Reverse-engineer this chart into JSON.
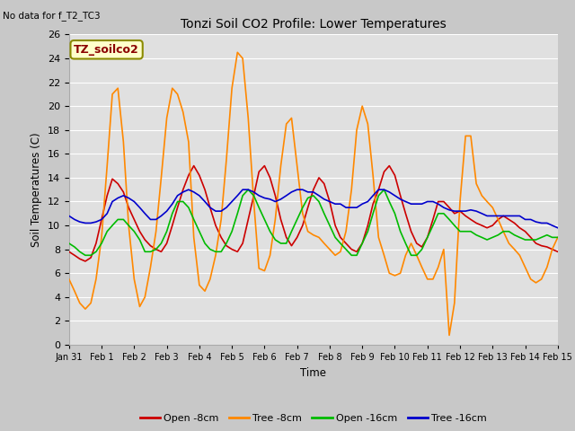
{
  "title": "Tonzi Soil CO2 Profile: Lower Temperatures",
  "subtitle": "No data for f_T2_TC3",
  "ylabel": "Soil Temperatures (C)",
  "xlabel": "Time",
  "legend_label": "TZ_soilco2",
  "ylim": [
    0,
    26
  ],
  "series_colors": {
    "open8": "#cc0000",
    "tree8": "#ff8800",
    "open16": "#00bb00",
    "tree16": "#0000cc"
  },
  "legend_items": [
    {
      "label": "Open -8cm",
      "color": "#cc0000"
    },
    {
      "label": "Tree -8cm",
      "color": "#ff8800"
    },
    {
      "label": "Open -16cm",
      "color": "#00bb00"
    },
    {
      "label": "Tree -16cm",
      "color": "#0000cc"
    }
  ],
  "xtick_labels": [
    "Jan 31",
    "Feb 1",
    "Feb 2",
    "Feb 3",
    "Feb 4",
    "Feb 5",
    "Feb 6",
    "Feb 7",
    "Feb 8",
    "Feb 9",
    "Feb 10",
    "Feb 11",
    "Feb 12",
    "Feb 13",
    "Feb 14",
    "Feb 15"
  ],
  "xtick_positions": [
    0,
    1,
    2,
    3,
    4,
    5,
    6,
    7,
    8,
    9,
    10,
    11,
    12,
    13,
    14,
    15
  ],
  "open8_x": [
    0.0,
    0.17,
    0.33,
    0.5,
    0.67,
    0.83,
    1.0,
    1.17,
    1.33,
    1.5,
    1.67,
    1.83,
    2.0,
    2.17,
    2.33,
    2.5,
    2.67,
    2.83,
    3.0,
    3.17,
    3.33,
    3.5,
    3.67,
    3.83,
    4.0,
    4.17,
    4.33,
    4.5,
    4.67,
    4.83,
    5.0,
    5.17,
    5.33,
    5.5,
    5.67,
    5.83,
    6.0,
    6.17,
    6.33,
    6.5,
    6.67,
    6.83,
    7.0,
    7.17,
    7.33,
    7.5,
    7.67,
    7.83,
    8.0,
    8.17,
    8.33,
    8.5,
    8.67,
    8.83,
    9.0,
    9.17,
    9.33,
    9.5,
    9.67,
    9.83,
    10.0,
    10.17,
    10.33,
    10.5,
    10.67,
    10.83,
    11.0,
    11.17,
    11.33,
    11.5,
    11.67,
    11.83,
    12.0,
    12.17,
    12.33,
    12.5,
    12.67,
    12.83,
    13.0,
    13.17,
    13.33,
    13.5,
    13.67,
    13.83,
    14.0,
    14.17,
    14.33,
    14.5,
    14.67,
    14.83,
    15.0
  ],
  "open8_y": [
    7.8,
    7.5,
    7.2,
    7.0,
    7.3,
    8.5,
    10.5,
    12.5,
    13.9,
    13.5,
    12.8,
    11.5,
    10.5,
    9.5,
    8.8,
    8.3,
    8.0,
    7.8,
    8.5,
    10.0,
    11.5,
    13.0,
    14.2,
    15.0,
    14.2,
    13.0,
    11.5,
    10.0,
    9.0,
    8.3,
    8.0,
    7.8,
    8.5,
    10.5,
    12.5,
    14.5,
    15.0,
    14.0,
    12.5,
    10.5,
    9.0,
    8.3,
    9.0,
    10.0,
    11.5,
    13.0,
    14.0,
    13.5,
    12.0,
    10.0,
    9.0,
    8.5,
    8.0,
    7.8,
    8.5,
    10.0,
    11.8,
    13.0,
    14.5,
    15.0,
    14.2,
    12.5,
    11.0,
    9.5,
    8.5,
    8.2,
    9.0,
    10.5,
    12.0,
    12.0,
    11.5,
    11.0,
    11.2,
    10.8,
    10.5,
    10.2,
    10.0,
    9.8,
    10.0,
    10.5,
    10.8,
    10.5,
    10.2,
    9.8,
    9.5,
    9.0,
    8.5,
    8.3,
    8.2,
    8.0,
    7.8
  ],
  "tree8_x": [
    0.0,
    0.17,
    0.33,
    0.5,
    0.67,
    0.83,
    1.0,
    1.17,
    1.33,
    1.5,
    1.67,
    1.83,
    2.0,
    2.17,
    2.33,
    2.5,
    2.67,
    2.83,
    3.0,
    3.17,
    3.33,
    3.5,
    3.67,
    3.83,
    4.0,
    4.17,
    4.33,
    4.5,
    4.67,
    4.83,
    5.0,
    5.17,
    5.33,
    5.5,
    5.67,
    5.83,
    6.0,
    6.17,
    6.33,
    6.5,
    6.67,
    6.83,
    7.0,
    7.17,
    7.33,
    7.5,
    7.67,
    7.83,
    8.0,
    8.17,
    8.33,
    8.5,
    8.67,
    8.83,
    9.0,
    9.17,
    9.33,
    9.5,
    9.67,
    9.83,
    10.0,
    10.17,
    10.33,
    10.5,
    10.67,
    10.83,
    11.0,
    11.17,
    11.33,
    11.5,
    11.67,
    11.83,
    12.0,
    12.17,
    12.33,
    12.5,
    12.67,
    12.83,
    13.0,
    13.17,
    13.33,
    13.5,
    13.67,
    13.83,
    14.0,
    14.17,
    14.33,
    14.5,
    14.67,
    14.83,
    15.0
  ],
  "tree8_y": [
    5.5,
    4.5,
    3.5,
    3.0,
    3.5,
    5.5,
    9.0,
    15.0,
    21.0,
    21.5,
    17.0,
    10.0,
    5.5,
    3.2,
    4.0,
    6.5,
    9.5,
    14.0,
    19.0,
    21.5,
    21.0,
    19.5,
    17.0,
    9.0,
    5.0,
    4.5,
    5.5,
    7.5,
    10.5,
    15.5,
    21.5,
    24.5,
    24.0,
    19.0,
    12.0,
    6.4,
    6.2,
    7.5,
    10.5,
    15.0,
    18.5,
    19.0,
    15.0,
    11.0,
    9.5,
    9.2,
    9.0,
    8.5,
    8.0,
    7.5,
    7.8,
    9.5,
    13.0,
    18.0,
    20.0,
    18.5,
    14.2,
    9.0,
    7.5,
    6.0,
    5.8,
    6.0,
    7.5,
    8.5,
    7.5,
    6.5,
    5.5,
    5.5,
    6.5,
    8.0,
    0.8,
    3.5,
    12.0,
    17.5,
    17.5,
    13.5,
    12.5,
    12.0,
    11.5,
    10.5,
    9.5,
    8.5,
    8.0,
    7.5,
    6.5,
    5.5,
    5.2,
    5.5,
    6.5,
    8.0,
    9.0
  ],
  "open16_x": [
    0.0,
    0.17,
    0.33,
    0.5,
    0.67,
    0.83,
    1.0,
    1.17,
    1.33,
    1.5,
    1.67,
    1.83,
    2.0,
    2.17,
    2.33,
    2.5,
    2.67,
    2.83,
    3.0,
    3.17,
    3.33,
    3.5,
    3.67,
    3.83,
    4.0,
    4.17,
    4.33,
    4.5,
    4.67,
    4.83,
    5.0,
    5.17,
    5.33,
    5.5,
    5.67,
    5.83,
    6.0,
    6.17,
    6.33,
    6.5,
    6.67,
    6.83,
    7.0,
    7.17,
    7.33,
    7.5,
    7.67,
    7.83,
    8.0,
    8.17,
    8.33,
    8.5,
    8.67,
    8.83,
    9.0,
    9.17,
    9.33,
    9.5,
    9.67,
    9.83,
    10.0,
    10.17,
    10.33,
    10.5,
    10.67,
    10.83,
    11.0,
    11.17,
    11.33,
    11.5,
    11.67,
    11.83,
    12.0,
    12.17,
    12.33,
    12.5,
    12.67,
    12.83,
    13.0,
    13.17,
    13.33,
    13.5,
    13.67,
    13.83,
    14.0,
    14.17,
    14.33,
    14.5,
    14.67,
    14.83,
    15.0
  ],
  "open16_y": [
    8.5,
    8.2,
    7.8,
    7.5,
    7.5,
    7.8,
    8.5,
    9.5,
    10.0,
    10.5,
    10.5,
    10.0,
    9.5,
    8.8,
    7.8,
    7.8,
    8.0,
    8.5,
    9.5,
    11.0,
    12.0,
    12.0,
    11.5,
    10.5,
    9.5,
    8.5,
    8.0,
    7.8,
    7.8,
    8.5,
    9.5,
    11.0,
    12.5,
    13.0,
    12.5,
    11.5,
    10.5,
    9.5,
    8.8,
    8.5,
    8.5,
    9.5,
    10.5,
    11.5,
    12.3,
    12.5,
    12.0,
    11.0,
    10.0,
    9.0,
    8.5,
    8.0,
    7.5,
    7.5,
    8.5,
    9.5,
    11.0,
    12.5,
    13.0,
    12.0,
    11.0,
    9.5,
    8.5,
    7.5,
    7.5,
    8.0,
    9.0,
    10.0,
    11.0,
    11.0,
    10.5,
    10.0,
    9.5,
    9.5,
    9.5,
    9.2,
    9.0,
    8.8,
    9.0,
    9.2,
    9.5,
    9.5,
    9.2,
    9.0,
    8.8,
    8.8,
    8.8,
    9.0,
    9.2,
    9.0,
    9.0
  ],
  "tree16_x": [
    0.0,
    0.17,
    0.33,
    0.5,
    0.67,
    0.83,
    1.0,
    1.17,
    1.33,
    1.5,
    1.67,
    1.83,
    2.0,
    2.17,
    2.33,
    2.5,
    2.67,
    2.83,
    3.0,
    3.17,
    3.33,
    3.5,
    3.67,
    3.83,
    4.0,
    4.17,
    4.33,
    4.5,
    4.67,
    4.83,
    5.0,
    5.17,
    5.33,
    5.5,
    5.67,
    5.83,
    6.0,
    6.17,
    6.33,
    6.5,
    6.67,
    6.83,
    7.0,
    7.17,
    7.33,
    7.5,
    7.67,
    7.83,
    8.0,
    8.17,
    8.33,
    8.5,
    8.67,
    8.83,
    9.0,
    9.17,
    9.33,
    9.5,
    9.67,
    9.83,
    10.0,
    10.17,
    10.33,
    10.5,
    10.67,
    10.83,
    11.0,
    11.17,
    11.33,
    11.5,
    11.67,
    11.83,
    12.0,
    12.17,
    12.33,
    12.5,
    12.67,
    12.83,
    13.0,
    13.17,
    13.33,
    13.5,
    13.67,
    13.83,
    14.0,
    14.17,
    14.33,
    14.5,
    14.67,
    14.83,
    15.0
  ],
  "tree16_y": [
    10.8,
    10.5,
    10.3,
    10.2,
    10.2,
    10.3,
    10.5,
    11.0,
    12.0,
    12.3,
    12.5,
    12.3,
    12.0,
    11.5,
    11.0,
    10.5,
    10.5,
    10.8,
    11.2,
    11.8,
    12.5,
    12.8,
    13.0,
    12.8,
    12.5,
    12.0,
    11.5,
    11.2,
    11.2,
    11.5,
    12.0,
    12.5,
    13.0,
    13.0,
    12.8,
    12.5,
    12.3,
    12.2,
    12.0,
    12.2,
    12.5,
    12.8,
    13.0,
    13.0,
    12.8,
    12.8,
    12.5,
    12.2,
    12.0,
    11.8,
    11.8,
    11.5,
    11.5,
    11.5,
    11.8,
    12.0,
    12.5,
    13.0,
    13.0,
    12.8,
    12.5,
    12.2,
    12.0,
    11.8,
    11.8,
    11.8,
    12.0,
    12.0,
    11.8,
    11.5,
    11.3,
    11.2,
    11.2,
    11.2,
    11.3,
    11.2,
    11.0,
    10.8,
    10.8,
    10.8,
    10.8,
    10.8,
    10.8,
    10.8,
    10.5,
    10.5,
    10.3,
    10.2,
    10.2,
    10.0,
    9.8
  ]
}
